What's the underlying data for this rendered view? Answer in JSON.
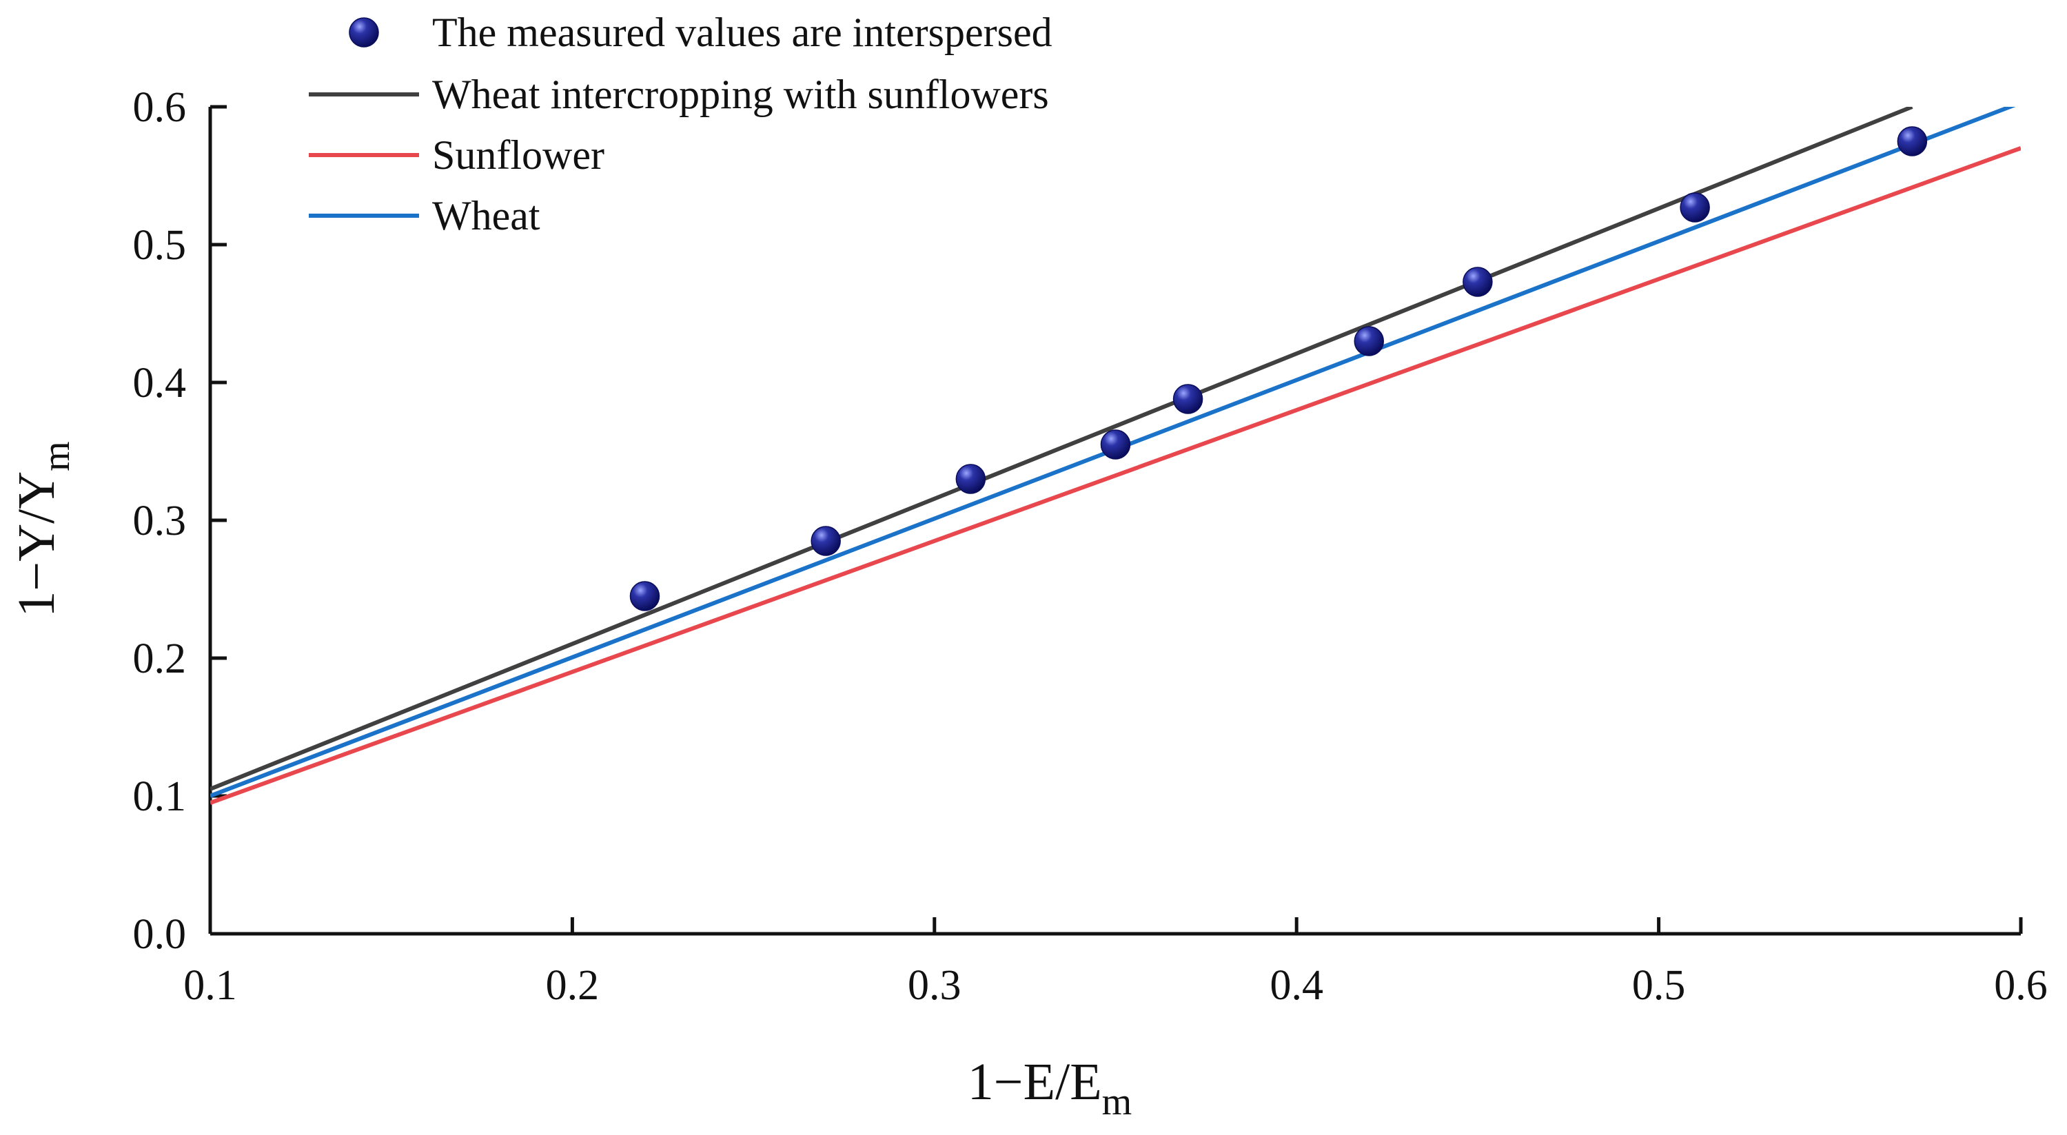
{
  "chart_data": {
    "type": "scatter",
    "title": "",
    "xlabel": {
      "main": "1−E/E",
      "sub": "m"
    },
    "ylabel": {
      "main": "1−Y/Y",
      "sub": "m"
    },
    "xlim": [
      0.1,
      0.6
    ],
    "ylim": [
      0.0,
      0.6
    ],
    "xticks": [
      0.1,
      0.2,
      0.3,
      0.4,
      0.5,
      0.6
    ],
    "yticks": [
      0.0,
      0.1,
      0.2,
      0.3,
      0.4,
      0.5,
      0.6
    ],
    "xtick_labels": [
      "0.1",
      "0.2",
      "0.3",
      "0.4",
      "0.5",
      "0.6"
    ],
    "ytick_labels": [
      "0.0",
      "0.1",
      "0.2",
      "0.3",
      "0.4",
      "0.5",
      "0.6"
    ],
    "legend_position": "top-left",
    "scatter": {
      "name": "The measured values are interspersed",
      "color": "#1a1f8c",
      "x": [
        0.22,
        0.27,
        0.31,
        0.35,
        0.37,
        0.42,
        0.45,
        0.51,
        0.57
      ],
      "y": [
        0.245,
        0.285,
        0.33,
        0.355,
        0.388,
        0.43,
        0.473,
        0.527,
        0.575
      ]
    },
    "lines": [
      {
        "name": "Wheat intercropping with sunflowers",
        "color": "#404040",
        "x": [
          0.1,
          0.57
        ],
        "y": [
          0.105,
          0.6
        ]
      },
      {
        "name": "Sunflower",
        "color": "#e8474d",
        "x": [
          0.1,
          0.6
        ],
        "y": [
          0.095,
          0.57
        ]
      },
      {
        "name": "Wheat",
        "color": "#1a72c9",
        "x": [
          0.1,
          0.6
        ],
        "y": [
          0.1,
          0.603
        ]
      }
    ]
  }
}
